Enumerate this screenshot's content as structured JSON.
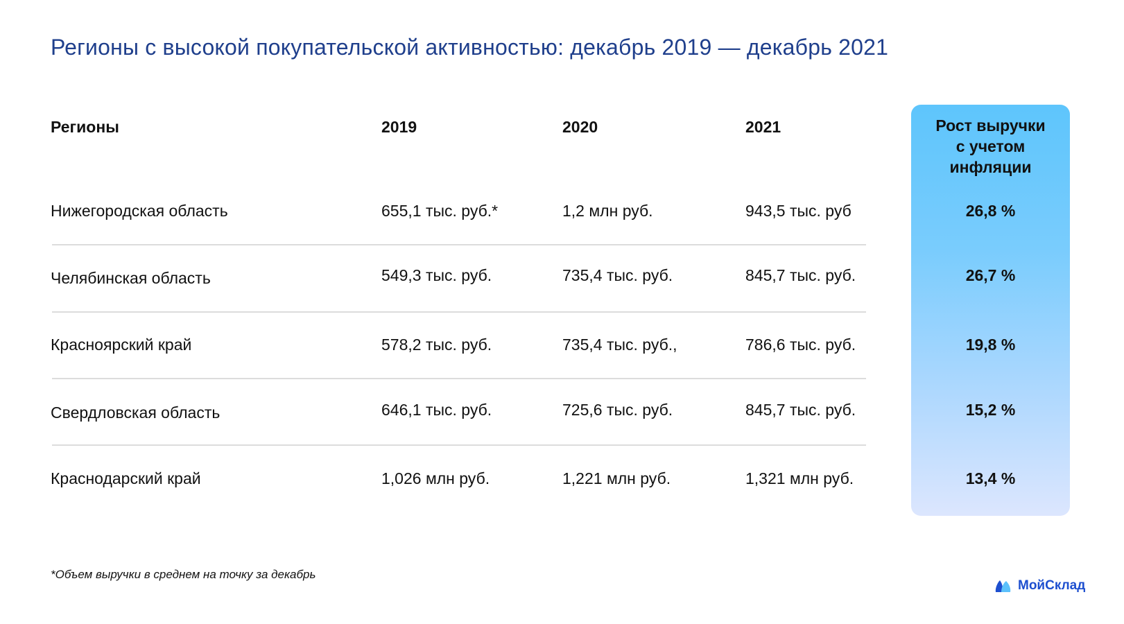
{
  "title": "Регионы с высокой покупательской активностью: декабрь 2019 — декабрь 2021",
  "headers": {
    "region": "Регионы",
    "y2019": "2019",
    "y2020": "2020",
    "y2021": "2021",
    "growth_lines": [
      "Рост выручки",
      "с учетом",
      "инфляции"
    ]
  },
  "rows": [
    {
      "region": "Нижегородская область",
      "y2019": "655,1 тыс. руб.*",
      "y2020": "1,2 млн руб.",
      "y2021": "943,5 тыс. руб",
      "growth": "26,8 %"
    },
    {
      "region": "Челябинская область",
      "y2019": "549,3 тыс. руб.",
      "y2020": "735,4 тыс. руб.",
      "y2021": "845,7 тыс. руб.",
      "growth": "26,7 %"
    },
    {
      "region": "Красноярский край",
      "y2019": "578,2 тыс. руб.",
      "y2020": "735,4 тыс. руб.,",
      "y2021": "786,6 тыс. руб.",
      "growth": "19,8 %"
    },
    {
      "region": "Свердловская область",
      "y2019": "646,1 тыс. руб.",
      "y2020": "725,6 тыс. руб.",
      "y2021": "845,7 тыс. руб.",
      "growth": "15,2 %"
    },
    {
      "region": "Краснодарский край",
      "y2019": "1,026 млн руб.",
      "y2020": "1,221 млн руб.",
      "y2021": "1,321 млн руб.",
      "growth": "13,4 %"
    }
  ],
  "footnote": "*Объем выручки в среднем на точку за декабрь",
  "logo": {
    "text": "МойСклад",
    "icon": "mountain-logo-icon",
    "color_dark": "#1d4fcf",
    "color_light": "#5cc1fb"
  },
  "colors": {
    "title": "#1f3f8c",
    "highlight_top": "#5ec5fc",
    "highlight_bottom": "#dce6fe",
    "divider": "#dcdcdc"
  }
}
